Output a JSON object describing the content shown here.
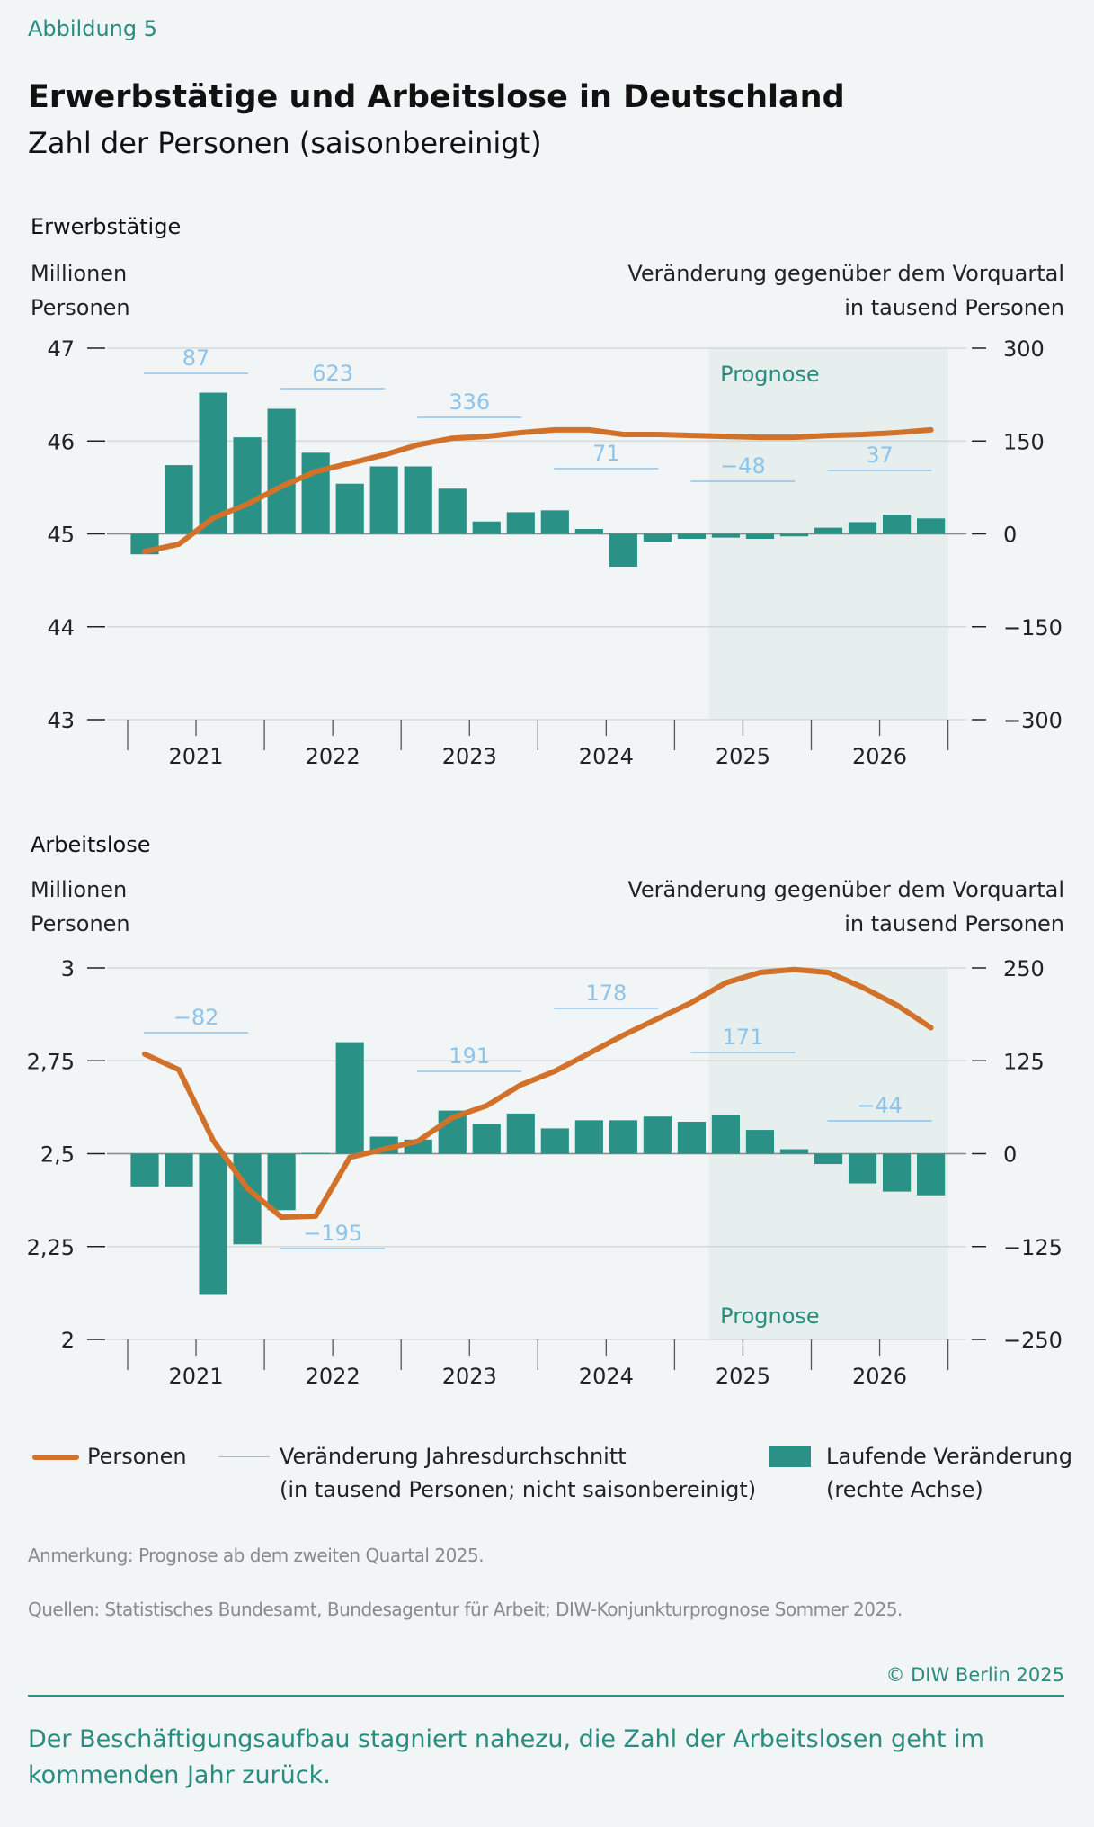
{
  "figure_label": "Abbildung 5",
  "title": "Erwerbstätige und Arbeitslose in Deutschland",
  "subtitle": "Zahl der Personen (saisonbereinigt)",
  "colors": {
    "line": "#d2722a",
    "bars": "#2a9187",
    "annual": "#8cc4ec",
    "forecast_shade": "#e6efed",
    "accent": "#2a8c80"
  },
  "chart_data": [
    {
      "type": "bar+line",
      "title": "Erwerbstätige",
      "left_axis_label": [
        "Millionen",
        "Personen"
      ],
      "right_axis_label": [
        "Veränderung gegenüber dem Vorquartal",
        "in tausend Personen"
      ],
      "categories": [
        "2021Q1",
        "2021Q2",
        "2021Q3",
        "2021Q4",
        "2022Q1",
        "2022Q2",
        "2022Q3",
        "2022Q4",
        "2023Q1",
        "2023Q2",
        "2023Q3",
        "2023Q4",
        "2024Q1",
        "2024Q2",
        "2024Q3",
        "2024Q4",
        "2025Q1",
        "2025Q2",
        "2025Q3",
        "2025Q4",
        "2026Q1",
        "2026Q2",
        "2026Q3",
        "2026Q4"
      ],
      "x_tick_labels": [
        "2021",
        "2022",
        "2023",
        "2024",
        "2025",
        "2026"
      ],
      "left_ylim": [
        43,
        47
      ],
      "left_ticks": [
        {
          "value": 47,
          "label": "47"
        },
        {
          "value": 46,
          "label": "46"
        },
        {
          "value": 45,
          "label": "45"
        },
        {
          "value": 44,
          "label": "44"
        },
        {
          "value": 43,
          "label": "43"
        }
      ],
      "right_ylim": [
        -300,
        300
      ],
      "right_ticks": [
        {
          "value": 300,
          "label": "300"
        },
        {
          "value": 150,
          "label": "150"
        },
        {
          "value": 0,
          "label": "0"
        },
        {
          "value": -150,
          "label": "−150"
        },
        {
          "value": -300,
          "label": "−300"
        }
      ],
      "grid": true,
      "forecast_label": "Prognose",
      "forecast_start": "2025Q2",
      "series": [
        {
          "name": "Personen",
          "type": "line",
          "axis": "left",
          "values": [
            44.81,
            44.89,
            45.17,
            45.32,
            45.51,
            45.67,
            45.76,
            45.85,
            45.96,
            46.03,
            46.05,
            46.09,
            46.12,
            46.12,
            46.07,
            46.07,
            46.06,
            46.05,
            46.04,
            46.04,
            46.06,
            46.07,
            46.09,
            46.12
          ]
        },
        {
          "name": "Laufende Veränderung",
          "type": "bar",
          "axis": "right",
          "values": [
            -33,
            111,
            228,
            156,
            202,
            131,
            81,
            109,
            109,
            73,
            20,
            35,
            38,
            8,
            -53,
            -13,
            -8,
            -6,
            -8,
            -4,
            10,
            19,
            31,
            25
          ]
        }
      ],
      "annual_changes": [
        {
          "year": "2021",
          "label": "87"
        },
        {
          "year": "2022",
          "label": "623"
        },
        {
          "year": "2023",
          "label": "336"
        },
        {
          "year": "2024",
          "label": "71"
        },
        {
          "year": "2025",
          "label": "−48"
        },
        {
          "year": "2026",
          "label": "37"
        }
      ]
    },
    {
      "type": "bar+line",
      "title": "Arbeitslose",
      "left_axis_label": [
        "Millionen",
        "Personen"
      ],
      "right_axis_label": [
        "Veränderung gegenüber dem Vorquartal",
        "in tausend Personen"
      ],
      "categories": [
        "2021Q1",
        "2021Q2",
        "2021Q3",
        "2021Q4",
        "2022Q1",
        "2022Q2",
        "2022Q3",
        "2022Q4",
        "2023Q1",
        "2023Q2",
        "2023Q3",
        "2023Q4",
        "2024Q1",
        "2024Q2",
        "2024Q3",
        "2024Q4",
        "2025Q1",
        "2025Q2",
        "2025Q3",
        "2025Q4",
        "2026Q1",
        "2026Q2",
        "2026Q3",
        "2026Q4"
      ],
      "x_tick_labels": [
        "2021",
        "2022",
        "2023",
        "2024",
        "2025",
        "2026"
      ],
      "left_ylim": [
        2,
        3
      ],
      "left_ticks": [
        {
          "value": 3,
          "label": "3"
        },
        {
          "value": 2.75,
          "label": "2,75"
        },
        {
          "value": 2.5,
          "label": "2,5"
        },
        {
          "value": 2.25,
          "label": "2,25"
        },
        {
          "value": 2,
          "label": "2"
        }
      ],
      "right_ylim": [
        -250,
        250
      ],
      "right_ticks": [
        {
          "value": 250,
          "label": "250"
        },
        {
          "value": 125,
          "label": "125"
        },
        {
          "value": 0,
          "label": "0"
        },
        {
          "value": -125,
          "label": "−125"
        },
        {
          "value": -250,
          "label": "−250"
        }
      ],
      "grid": true,
      "forecast_label": "Prognose",
      "forecast_start": "2025Q2",
      "series": [
        {
          "name": "Personen",
          "type": "line",
          "axis": "left",
          "values": [
            2.768,
            2.726,
            2.536,
            2.407,
            2.329,
            2.332,
            2.49,
            2.512,
            2.534,
            2.597,
            2.629,
            2.685,
            2.722,
            2.77,
            2.819,
            2.863,
            2.907,
            2.96,
            2.988,
            2.996,
            2.988,
            2.948,
            2.9,
            2.839
          ]
        },
        {
          "name": "Laufende Veränderung",
          "type": "bar",
          "axis": "right",
          "values": [
            -44,
            -44,
            -190,
            -122,
            -76,
            1,
            150,
            23,
            19,
            58,
            40,
            54,
            34,
            45,
            45,
            50,
            43,
            52,
            32,
            6,
            -14,
            -40,
            -51,
            -56
          ]
        }
      ],
      "annual_changes": [
        {
          "year": "2021",
          "label": "−82"
        },
        {
          "year": "2022",
          "label": "−195"
        },
        {
          "year": "2023",
          "label": "191"
        },
        {
          "year": "2024",
          "label": "178"
        },
        {
          "year": "2025",
          "label": "171"
        },
        {
          "year": "2026",
          "label": "−44"
        }
      ]
    }
  ],
  "legend": {
    "line": "Personen",
    "annual": [
      "Veränderung Jahresdurchschnitt",
      "(in tausend Personen; nicht saisonbereinigt)"
    ],
    "bars": [
      "Laufende Veränderung",
      "(rechte Achse)"
    ]
  },
  "note": "Anmerkung: Prognose ab dem zweiten Quartal 2025.",
  "sources": "Quellen: Statistisches Bundesamt, Bundesagentur für Arbeit; DIW-Konjunkturprognose Sommer 2025.",
  "copyright": "© DIW Berlin 2025",
  "footer": "Der Beschäftigungsaufbau stagniert nahezu, die Zahl der Arbeitslosen geht im kommenden Jahr zurück."
}
